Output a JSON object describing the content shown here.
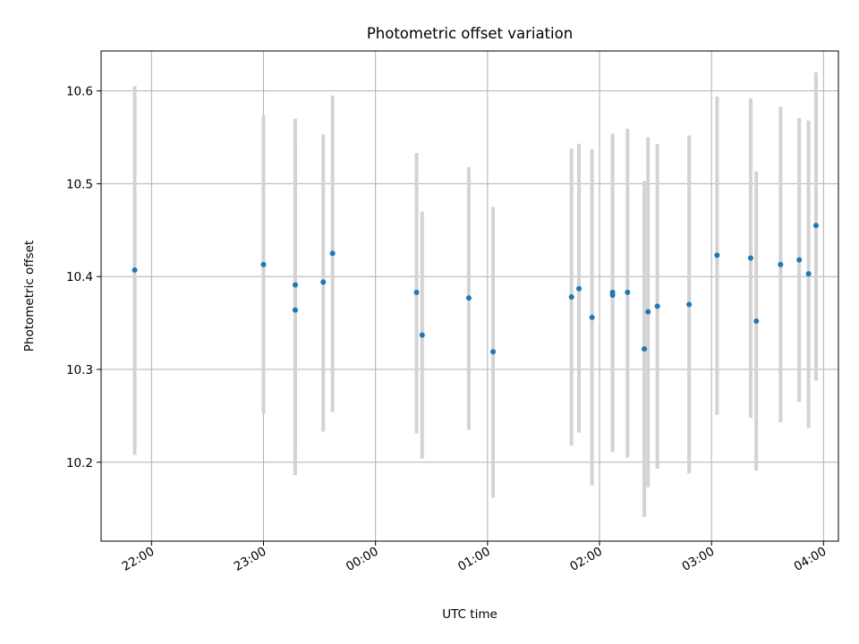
{
  "chart_data": {
    "type": "scatter",
    "title": "Photometric offset variation",
    "xlabel": "UTC time",
    "ylabel": "Photometric offset",
    "x_unit": "UTC time (HH:MM)",
    "xlim": [
      "21:33",
      "04:08"
    ],
    "ylim": [
      10.115,
      10.643
    ],
    "x_ticks": [
      "22:00",
      "23:00",
      "00:00",
      "01:00",
      "02:00",
      "03:00",
      "04:00"
    ],
    "y_ticks": [
      10.2,
      10.3,
      10.4,
      10.5,
      10.6
    ],
    "y_tick_labels": [
      "10.2",
      "10.3",
      "10.4",
      "10.5",
      "10.6"
    ],
    "x_tick_rotation_deg": 30,
    "grid": true,
    "legend": "none",
    "colors": {
      "point": "#1f77b4",
      "errorbar": "#d3d3d3",
      "grid": "#b0b0b0"
    },
    "points": [
      {
        "x": "21:51",
        "y": 10.407,
        "ylow": 10.208,
        "yhigh": 10.605
      },
      {
        "x": "23:00",
        "y": 10.413,
        "ylow": 10.252,
        "yhigh": 10.574
      },
      {
        "x": "23:17",
        "y": 10.391,
        "ylow": 10.212,
        "yhigh": 10.57
      },
      {
        "x": "23:17",
        "y": 10.364,
        "ylow": 10.186,
        "yhigh": 10.542
      },
      {
        "x": "23:32",
        "y": 10.394,
        "ylow": 10.233,
        "yhigh": 10.553
      },
      {
        "x": "23:37",
        "y": 10.425,
        "ylow": 10.254,
        "yhigh": 10.595
      },
      {
        "x": "00:22",
        "y": 10.383,
        "ylow": 10.231,
        "yhigh": 10.533
      },
      {
        "x": "00:25",
        "y": 10.337,
        "ylow": 10.204,
        "yhigh": 10.47
      },
      {
        "x": "00:50",
        "y": 10.377,
        "ylow": 10.235,
        "yhigh": 10.518
      },
      {
        "x": "01:03",
        "y": 10.319,
        "ylow": 10.162,
        "yhigh": 10.475
      },
      {
        "x": "01:45",
        "y": 10.378,
        "ylow": 10.218,
        "yhigh": 10.538
      },
      {
        "x": "01:49",
        "y": 10.387,
        "ylow": 10.232,
        "yhigh": 10.543
      },
      {
        "x": "01:56",
        "y": 10.356,
        "ylow": 10.175,
        "yhigh": 10.537
      },
      {
        "x": "02:07",
        "y": 10.383,
        "ylow": 10.211,
        "yhigh": 10.554
      },
      {
        "x": "02:07",
        "y": 10.38,
        "ylow": 10.211,
        "yhigh": 10.55
      },
      {
        "x": "02:15",
        "y": 10.383,
        "ylow": 10.205,
        "yhigh": 10.559
      },
      {
        "x": "02:24",
        "y": 10.322,
        "ylow": 10.141,
        "yhigh": 10.503
      },
      {
        "x": "02:26",
        "y": 10.362,
        "ylow": 10.173,
        "yhigh": 10.55
      },
      {
        "x": "02:31",
        "y": 10.368,
        "ylow": 10.193,
        "yhigh": 10.543
      },
      {
        "x": "02:48",
        "y": 10.37,
        "ylow": 10.188,
        "yhigh": 10.552
      },
      {
        "x": "03:03",
        "y": 10.423,
        "ylow": 10.251,
        "yhigh": 10.594
      },
      {
        "x": "03:21",
        "y": 10.42,
        "ylow": 10.248,
        "yhigh": 10.592
      },
      {
        "x": "03:24",
        "y": 10.352,
        "ylow": 10.191,
        "yhigh": 10.513
      },
      {
        "x": "03:37",
        "y": 10.413,
        "ylow": 10.243,
        "yhigh": 10.583
      },
      {
        "x": "03:47",
        "y": 10.418,
        "ylow": 10.265,
        "yhigh": 10.571
      },
      {
        "x": "03:52",
        "y": 10.403,
        "ylow": 10.237,
        "yhigh": 10.568
      },
      {
        "x": "03:56",
        "y": 10.455,
        "ylow": 10.288,
        "yhigh": 10.62
      }
    ]
  }
}
